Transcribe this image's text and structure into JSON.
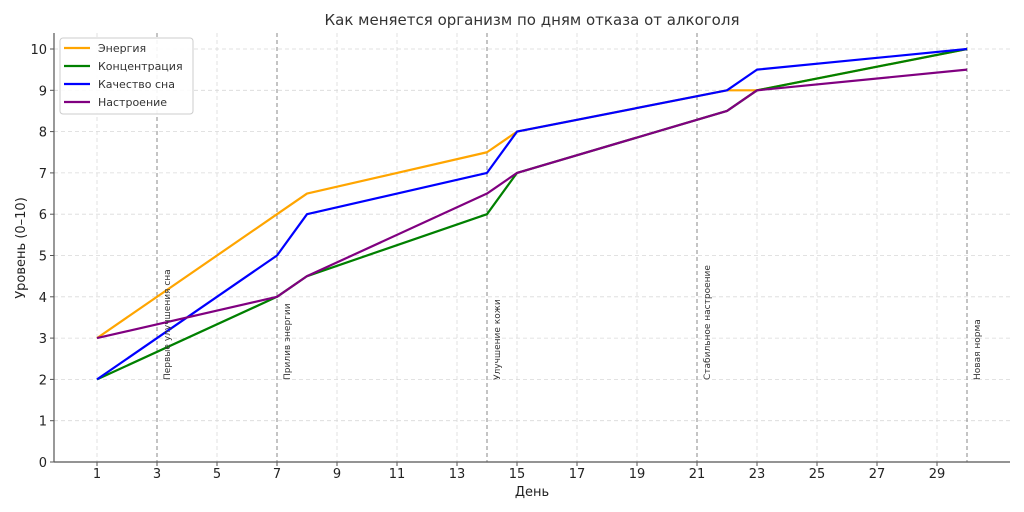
{
  "chart_data": {
    "type": "line",
    "title": "Как меняется организм по дням отказа от алкоголя",
    "xlabel": "День",
    "ylabel": "Уровень (0–10)",
    "xlim": [
      -0.5,
      31.5
    ],
    "ylim": [
      0,
      10.3
    ],
    "xticks": [
      1,
      3,
      5,
      7,
      9,
      11,
      13,
      15,
      17,
      19,
      21,
      23,
      25,
      27,
      29
    ],
    "yticks": [
      0,
      1,
      2,
      3,
      4,
      5,
      6,
      7,
      8,
      9,
      10
    ],
    "grid": true,
    "legend_position": "upper left",
    "x": [
      1,
      7,
      8,
      14,
      15,
      22,
      23,
      30
    ],
    "series": [
      {
        "name": "Энергия",
        "color": "#FFA500",
        "values": [
          3,
          6,
          6.5,
          7.5,
          8,
          9,
          9,
          10
        ]
      },
      {
        "name": "Концентрация",
        "color": "#008000",
        "values": [
          2,
          4,
          4.5,
          6,
          7,
          8.5,
          9,
          10
        ]
      },
      {
        "name": "Качество сна",
        "color": "#0000FF",
        "values": [
          2,
          5,
          6,
          7,
          8,
          9,
          9.5,
          10
        ]
      },
      {
        "name": "Настроение",
        "color": "#800080",
        "values": [
          3,
          4,
          4.5,
          6.5,
          7,
          8.5,
          9,
          9.5
        ]
      }
    ],
    "annotations": [
      {
        "x": 3,
        "label": "Первые улучшения сна"
      },
      {
        "x": 7,
        "label": "Прилив энергии"
      },
      {
        "x": 14,
        "label": "Улучшение кожи"
      },
      {
        "x": 21,
        "label": "Стабильное настроение"
      },
      {
        "x": 30,
        "label": "Новая норма"
      }
    ]
  }
}
